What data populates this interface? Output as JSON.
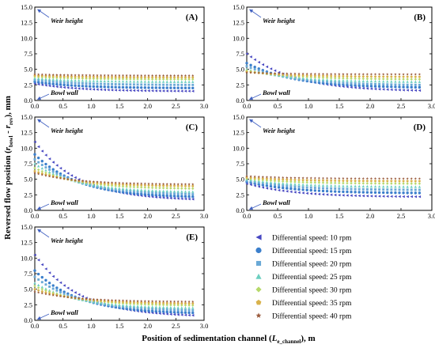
{
  "figure": {
    "ylabel_main": "Reversed flow position (",
    "ylabel_r": "r",
    "ylabel_bowl": "bowl",
    "ylabel_minus": " - ",
    "ylabel_rev": "rev",
    "ylabel_tail": "), mm",
    "xlabel_main": "Position of sedimentation channel (",
    "xlabel_L": "L",
    "xlabel_sub": "e_channel",
    "xlabel_tail": "), m",
    "weir_label": "Weir height",
    "bowl_label": "Bowl wall",
    "legend": [
      "Differential speed: 10 rpm",
      "Differential speed: 15 rpm",
      "Differential speed: 20 rpm",
      "Differential speed: 25 rpm",
      "Differential speed: 30 rpm",
      "Differential speed: 35 rpm",
      "Differential speed: 40 rpm"
    ],
    "series_colors": [
      "#4747c2",
      "#3b7fcc",
      "#6aa9d6",
      "#6ccfc0",
      "#b6d96a",
      "#d9b24c",
      "#9a5a3c"
    ],
    "series_markers": [
      "triangle-left",
      "circle",
      "square",
      "triangle-up",
      "diamond",
      "pentagon",
      "star"
    ]
  },
  "chart_data": [
    {
      "type": "scatter",
      "panel": "(A)",
      "xlim": [
        0,
        3
      ],
      "ylim": [
        0,
        15
      ],
      "xticks": [
        "0.0",
        "0.5",
        "1.0",
        "1.5",
        "2.0",
        "2.5",
        "3.0"
      ],
      "yticks": [
        "0.0",
        "2.5",
        "5.0",
        "7.5",
        "10.0",
        "12.5",
        "15.0"
      ],
      "x_range": [
        0,
        2.8
      ],
      "series": [
        {
          "values": [
            2.7,
            1.5
          ]
        },
        {
          "values": [
            3.0,
            2.0
          ]
        },
        {
          "values": [
            3.3,
            2.5
          ]
        },
        {
          "values": [
            3.6,
            3.0
          ]
        },
        {
          "values": [
            3.8,
            3.4
          ]
        },
        {
          "values": [
            4.0,
            3.7
          ]
        },
        {
          "values": [
            4.2,
            4.0
          ]
        }
      ]
    },
    {
      "type": "scatter",
      "panel": "(B)",
      "xlim": [
        0,
        3
      ],
      "ylim": [
        0,
        15
      ],
      "xticks": [
        "0.0",
        "0.5",
        "1.0",
        "1.5",
        "2.0",
        "2.5",
        "3.0"
      ],
      "yticks": [
        "0.0",
        "2.5",
        "5.0",
        "7.5",
        "10.0",
        "12.5",
        "15.0"
      ],
      "x_range": [
        0,
        2.8
      ],
      "series": [
        {
          "values": [
            7.5,
            1.6
          ]
        },
        {
          "values": [
            6.0,
            2.1
          ]
        },
        {
          "values": [
            5.5,
            2.5
          ]
        },
        {
          "values": [
            5.0,
            3.0
          ]
        },
        {
          "values": [
            4.8,
            3.4
          ]
        },
        {
          "values": [
            4.6,
            3.8
          ]
        },
        {
          "values": [
            4.5,
            4.2
          ]
        }
      ]
    },
    {
      "type": "scatter",
      "panel": "(C)",
      "xlim": [
        0,
        3
      ],
      "ylim": [
        0,
        15
      ],
      "xticks": [
        "0.0",
        "0.5",
        "1.0",
        "1.5",
        "2.0",
        "2.5",
        "3.0"
      ],
      "yticks": [
        "0.0",
        "2.5",
        "5.0",
        "7.5",
        "10.0",
        "12.5",
        "15.0"
      ],
      "x_range": [
        0,
        2.8
      ],
      "series": [
        {
          "values": [
            11.0,
            1.8
          ]
        },
        {
          "values": [
            9.0,
            2.2
          ]
        },
        {
          "values": [
            8.2,
            2.6
          ]
        },
        {
          "values": [
            7.5,
            3.0
          ]
        },
        {
          "values": [
            6.8,
            3.5
          ]
        },
        {
          "values": [
            6.3,
            3.9
          ]
        },
        {
          "values": [
            6.0,
            4.2
          ]
        }
      ]
    },
    {
      "type": "scatter",
      "panel": "(D)",
      "xlim": [
        0,
        3
      ],
      "ylim": [
        0,
        15
      ],
      "xticks": [
        "0.0",
        "0.5",
        "1.0",
        "1.5",
        "2.0",
        "2.5",
        "3.0"
      ],
      "yticks": [
        "0.0",
        "2.5",
        "5.0",
        "7.5",
        "10.0",
        "12.5",
        "15.0"
      ],
      "x_range": [
        0,
        2.8
      ],
      "series": [
        {
          "values": [
            4.3,
            2.2
          ]
        },
        {
          "values": [
            4.6,
            2.8
          ]
        },
        {
          "values": [
            4.8,
            3.3
          ]
        },
        {
          "values": [
            5.0,
            3.8
          ]
        },
        {
          "values": [
            5.1,
            4.3
          ]
        },
        {
          "values": [
            5.3,
            4.7
          ]
        },
        {
          "values": [
            5.5,
            5.1
          ]
        }
      ]
    },
    {
      "type": "scatter",
      "panel": "(E)",
      "xlim": [
        0,
        3
      ],
      "ylim": [
        0,
        15
      ],
      "xticks": [
        "0.0",
        "0.5",
        "1.0",
        "1.5",
        "2.0",
        "2.5",
        "3.0"
      ],
      "yticks": [
        "0.0",
        "2.5",
        "5.0",
        "7.5",
        "10.0",
        "12.5",
        "15.0"
      ],
      "x_range": [
        0,
        2.8
      ],
      "series": [
        {
          "values": [
            10.5,
            0.8
          ]
        },
        {
          "values": [
            8.0,
            1.2
          ]
        },
        {
          "values": [
            7.0,
            1.6
          ]
        },
        {
          "values": [
            6.0,
            2.0
          ]
        },
        {
          "values": [
            5.5,
            2.4
          ]
        },
        {
          "values": [
            5.0,
            2.7
          ]
        },
        {
          "values": [
            4.6,
            3.0
          ]
        }
      ]
    }
  ]
}
